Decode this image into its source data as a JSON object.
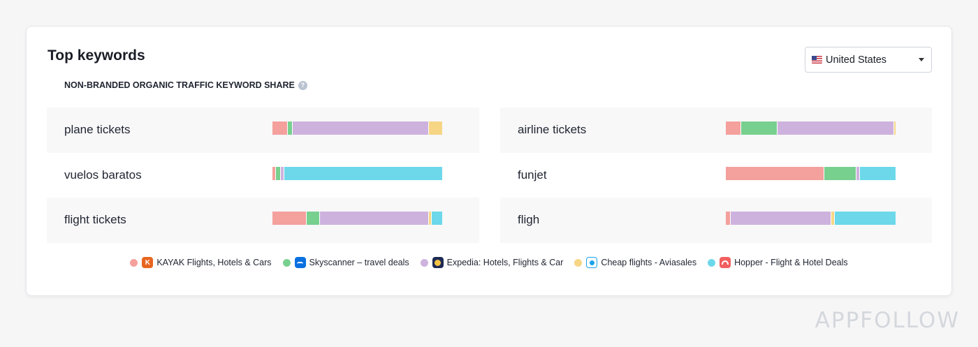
{
  "card": {
    "title": "Top keywords",
    "subtitle": "NON-BRANDED ORGANIC TRAFFIC KEYWORD SHARE",
    "help_icon": "?"
  },
  "country_select": {
    "value": "United States",
    "flag_icon": "us-flag-icon",
    "caret_icon": "chevron-down-icon"
  },
  "legend": [
    {
      "label": "KAYAK Flights, Hotels & Cars",
      "color": "#f4a09c",
      "icon_glyph": "K",
      "icon": "kayak-app-icon"
    },
    {
      "label": "Skyscanner – travel deals",
      "color": "#78d08f",
      "icon_glyph": "",
      "icon": "skyscanner-app-icon"
    },
    {
      "label": "Expedia: Hotels, Flights & Car",
      "color": "#cdb2de",
      "icon_glyph": "",
      "icon": "expedia-app-icon"
    },
    {
      "label": "Cheap flights - Aviasales",
      "color": "#f6d685",
      "icon_glyph": "",
      "icon": "aviasales-app-icon"
    },
    {
      "label": "Hopper - Flight & Hotel Deals",
      "color": "#6dd8ea",
      "icon_glyph": "",
      "icon": "hopper-app-icon"
    }
  ],
  "keywords": [
    {
      "label": "plane tickets",
      "shares": [
        9,
        3,
        80,
        8,
        0
      ]
    },
    {
      "label": "airline tickets",
      "shares": [
        9,
        21,
        68,
        1,
        0
      ]
    },
    {
      "label": "vuelos baratos",
      "shares": [
        2,
        3,
        2,
        0,
        93
      ]
    },
    {
      "label": "funjet",
      "shares": [
        58,
        19,
        2,
        0,
        21
      ]
    },
    {
      "label": "flight tickets",
      "shares": [
        20,
        8,
        64,
        2,
        6
      ]
    },
    {
      "label": "fligh",
      "shares": [
        3,
        0,
        59,
        2,
        36
      ]
    }
  ],
  "watermark": "APPFOLLOW"
}
